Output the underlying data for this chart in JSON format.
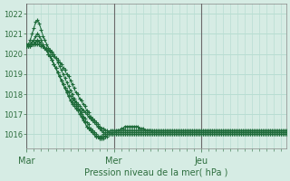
{
  "background_color": "#d6ece4",
  "grid_color": "#b8ddd2",
  "line_color": "#1e6b3a",
  "vline_color": "#8a8a8a",
  "tick_color": "#2d6e3e",
  "text_color": "#2d6e3e",
  "xlabel": "Pression niveau de la mer( hPa )",
  "ylim": [
    1015.3,
    1022.5
  ],
  "yticks": [
    1016,
    1017,
    1018,
    1019,
    1020,
    1021,
    1022
  ],
  "day_labels": [
    "Mar",
    "Mer",
    "Jeu"
  ],
  "day_positions": [
    0,
    48,
    96
  ],
  "total_points": 144,
  "series": [
    [
      1020.5,
      1020.5,
      1020.5,
      1020.5,
      1020.5,
      1020.5,
      1020.5,
      1020.5,
      1020.4,
      1020.4,
      1020.3,
      1020.3,
      1020.2,
      1020.1,
      1020.0,
      1019.9,
      1019.8,
      1019.7,
      1019.6,
      1019.5,
      1019.3,
      1019.2,
      1019.0,
      1018.9,
      1018.7,
      1018.5,
      1018.3,
      1018.1,
      1018.0,
      1017.8,
      1017.7,
      1017.5,
      1017.4,
      1017.2,
      1017.1,
      1016.9,
      1016.8,
      1016.7,
      1016.6,
      1016.5,
      1016.4,
      1016.3,
      1016.3,
      1016.2,
      1016.2,
      1016.1,
      1016.1,
      1016.0,
      1016.1,
      1016.1,
      1016.2,
      1016.2,
      1016.3,
      1016.3,
      1016.4,
      1016.4,
      1016.4,
      1016.4,
      1016.4,
      1016.4,
      1016.4,
      1016.4,
      1016.3,
      1016.3,
      1016.3,
      1016.2,
      1016.2,
      1016.2,
      1016.2,
      1016.1,
      1016.1,
      1016.1,
      1016.1,
      1016.1,
      1016.1,
      1016.1,
      1016.1,
      1016.1,
      1016.1,
      1016.1,
      1016.1,
      1016.1,
      1016.1,
      1016.1,
      1016.1,
      1016.1,
      1016.1,
      1016.1,
      1016.1,
      1016.1,
      1016.1,
      1016.1,
      1016.1,
      1016.1,
      1016.1,
      1016.1,
      1016.1,
      1016.1,
      1016.1,
      1016.1,
      1016.1,
      1016.1,
      1016.1,
      1016.1,
      1016.1,
      1016.1,
      1016.1,
      1016.1,
      1016.1,
      1016.1,
      1016.1,
      1016.1,
      1016.1,
      1016.1,
      1016.1,
      1016.1,
      1016.1,
      1016.1,
      1016.1,
      1016.1,
      1016.1,
      1016.1,
      1016.1,
      1016.1,
      1016.1,
      1016.1,
      1016.1,
      1016.1,
      1016.1,
      1016.1,
      1016.1,
      1016.1,
      1016.1,
      1016.1,
      1016.1,
      1016.1,
      1016.1,
      1016.1,
      1016.1,
      1016.1,
      1016.1,
      1016.1,
      1016.1,
      1016.1
    ],
    [
      1020.4,
      1020.5,
      1020.7,
      1021.0,
      1021.3,
      1021.6,
      1021.7,
      1021.5,
      1021.2,
      1020.9,
      1020.7,
      1020.5,
      1020.3,
      1020.2,
      1020.1,
      1020.0,
      1019.8,
      1019.6,
      1019.4,
      1019.2,
      1019.0,
      1018.8,
      1018.6,
      1018.4,
      1018.2,
      1018.0,
      1017.8,
      1017.6,
      1017.4,
      1017.2,
      1017.0,
      1016.8,
      1016.6,
      1016.4,
      1016.3,
      1016.2,
      1016.1,
      1016.0,
      1015.9,
      1015.9,
      1015.9,
      1015.9,
      1016.0,
      1016.0,
      1016.1,
      1016.1,
      1016.2,
      1016.2,
      1016.2,
      1016.2,
      1016.2,
      1016.2,
      1016.2,
      1016.2,
      1016.2,
      1016.2,
      1016.2,
      1016.2,
      1016.2,
      1016.2,
      1016.2,
      1016.2,
      1016.2,
      1016.2,
      1016.2,
      1016.2,
      1016.2,
      1016.2,
      1016.2,
      1016.2,
      1016.2,
      1016.2,
      1016.2,
      1016.2,
      1016.2,
      1016.2,
      1016.2,
      1016.2,
      1016.2,
      1016.2,
      1016.2,
      1016.2,
      1016.2,
      1016.2,
      1016.2,
      1016.2,
      1016.2,
      1016.2,
      1016.2,
      1016.2,
      1016.2,
      1016.2,
      1016.2,
      1016.2,
      1016.2,
      1016.2,
      1016.2,
      1016.2,
      1016.2,
      1016.2,
      1016.2,
      1016.2,
      1016.2,
      1016.2,
      1016.2,
      1016.2,
      1016.2,
      1016.2,
      1016.2,
      1016.2,
      1016.2,
      1016.2,
      1016.2,
      1016.2,
      1016.2,
      1016.2,
      1016.2,
      1016.2,
      1016.2,
      1016.2,
      1016.2,
      1016.2,
      1016.2,
      1016.2,
      1016.2,
      1016.2,
      1016.2,
      1016.2,
      1016.2,
      1016.2,
      1016.2,
      1016.2,
      1016.2,
      1016.2,
      1016.2,
      1016.2,
      1016.2,
      1016.2,
      1016.2,
      1016.2,
      1016.2,
      1016.2,
      1016.2,
      1016.2
    ],
    [
      1020.4,
      1020.4,
      1020.5,
      1020.6,
      1020.7,
      1020.9,
      1021.0,
      1020.9,
      1020.7,
      1020.5,
      1020.3,
      1020.2,
      1020.0,
      1019.9,
      1019.7,
      1019.5,
      1019.3,
      1019.1,
      1018.9,
      1018.7,
      1018.5,
      1018.3,
      1018.1,
      1017.9,
      1017.7,
      1017.5,
      1017.4,
      1017.3,
      1017.2,
      1017.0,
      1016.9,
      1016.7,
      1016.6,
      1016.4,
      1016.3,
      1016.2,
      1016.1,
      1016.0,
      1015.9,
      1015.9,
      1015.8,
      1015.8,
      1015.9,
      1015.9,
      1016.0,
      1016.0,
      1016.1,
      1016.1,
      1016.1,
      1016.1,
      1016.1,
      1016.1,
      1016.1,
      1016.1,
      1016.1,
      1016.1,
      1016.1,
      1016.1,
      1016.1,
      1016.1,
      1016.1,
      1016.1,
      1016.1,
      1016.1,
      1016.1,
      1016.1,
      1016.1,
      1016.1,
      1016.1,
      1016.1,
      1016.1,
      1016.1,
      1016.1,
      1016.1,
      1016.1,
      1016.1,
      1016.1,
      1016.1,
      1016.1,
      1016.1,
      1016.1,
      1016.1,
      1016.1,
      1016.1,
      1016.1,
      1016.1,
      1016.1,
      1016.1,
      1016.1,
      1016.1,
      1016.1,
      1016.1,
      1016.1,
      1016.1,
      1016.1,
      1016.1,
      1016.1,
      1016.1,
      1016.1,
      1016.1,
      1016.1,
      1016.1,
      1016.1,
      1016.1,
      1016.1,
      1016.1,
      1016.1,
      1016.1,
      1016.1,
      1016.1,
      1016.1,
      1016.1,
      1016.1,
      1016.1,
      1016.1,
      1016.1,
      1016.1,
      1016.1,
      1016.1,
      1016.1,
      1016.1,
      1016.1,
      1016.1,
      1016.1,
      1016.1,
      1016.1,
      1016.1,
      1016.1,
      1016.1,
      1016.1,
      1016.1,
      1016.1,
      1016.1,
      1016.1,
      1016.1,
      1016.1,
      1016.1,
      1016.1,
      1016.1,
      1016.1,
      1016.1,
      1016.1,
      1016.1,
      1016.1
    ],
    [
      1020.4,
      1020.4,
      1020.4,
      1020.5,
      1020.5,
      1020.6,
      1020.7,
      1020.6,
      1020.5,
      1020.4,
      1020.3,
      1020.2,
      1020.0,
      1019.9,
      1019.7,
      1019.5,
      1019.3,
      1019.1,
      1018.9,
      1018.7,
      1018.5,
      1018.3,
      1018.1,
      1017.9,
      1017.7,
      1017.6,
      1017.5,
      1017.4,
      1017.3,
      1017.2,
      1017.1,
      1016.9,
      1016.8,
      1016.6,
      1016.5,
      1016.3,
      1016.2,
      1016.1,
      1016.0,
      1015.9,
      1015.8,
      1015.8,
      1015.8,
      1015.9,
      1015.9,
      1016.0,
      1016.0,
      1016.0,
      1016.0,
      1016.0,
      1016.0,
      1016.0,
      1016.0,
      1016.0,
      1016.0,
      1016.0,
      1016.0,
      1016.0,
      1016.0,
      1016.0,
      1016.0,
      1016.0,
      1016.0,
      1016.0,
      1016.0,
      1016.0,
      1016.0,
      1016.0,
      1016.0,
      1016.0,
      1016.0,
      1016.0,
      1016.0,
      1016.0,
      1016.0,
      1016.0,
      1016.0,
      1016.0,
      1016.0,
      1016.0,
      1016.0,
      1016.0,
      1016.0,
      1016.0,
      1016.0,
      1016.0,
      1016.0,
      1016.0,
      1016.0,
      1016.0,
      1016.0,
      1016.0,
      1016.0,
      1016.0,
      1016.0,
      1016.0,
      1016.0,
      1016.0,
      1016.0,
      1016.0,
      1016.0,
      1016.0,
      1016.0,
      1016.0,
      1016.0,
      1016.0,
      1016.0,
      1016.0,
      1016.0,
      1016.0,
      1016.0,
      1016.0,
      1016.0,
      1016.0,
      1016.0,
      1016.0,
      1016.0,
      1016.0,
      1016.0,
      1016.0,
      1016.0,
      1016.0,
      1016.0,
      1016.0,
      1016.0,
      1016.0,
      1016.0,
      1016.0,
      1016.0,
      1016.0,
      1016.0,
      1016.0,
      1016.0,
      1016.0,
      1016.0,
      1016.0,
      1016.0,
      1016.0,
      1016.0,
      1016.0,
      1016.0,
      1016.0,
      1016.0,
      1016.0
    ],
    [
      1020.4,
      1020.4,
      1020.4,
      1020.5,
      1020.5,
      1020.6,
      1020.6,
      1020.6,
      1020.5,
      1020.4,
      1020.3,
      1020.2,
      1020.0,
      1019.9,
      1019.7,
      1019.5,
      1019.3,
      1019.1,
      1018.9,
      1018.7,
      1018.5,
      1018.3,
      1018.2,
      1018.1,
      1017.9,
      1017.8,
      1017.7,
      1017.6,
      1017.5,
      1017.4,
      1017.3,
      1017.2,
      1017.1,
      1017.0,
      1016.9,
      1016.8,
      1016.7,
      1016.6,
      1016.5,
      1016.4,
      1016.3,
      1016.2,
      1016.1,
      1016.0,
      1016.0,
      1016.0,
      1016.0,
      1016.0,
      1016.0,
      1016.0,
      1016.0,
      1016.0,
      1016.0,
      1016.0,
      1016.0,
      1016.0,
      1016.0,
      1016.0,
      1016.0,
      1016.0,
      1016.0,
      1016.0,
      1016.0,
      1016.0,
      1016.0,
      1016.0,
      1016.0,
      1016.0,
      1016.0,
      1016.0,
      1016.0,
      1016.0,
      1016.0,
      1016.0,
      1016.0,
      1016.0,
      1016.0,
      1016.0,
      1016.0,
      1016.0,
      1016.0,
      1016.0,
      1016.0,
      1016.0,
      1016.0,
      1016.0,
      1016.0,
      1016.0,
      1016.0,
      1016.0,
      1016.0,
      1016.0,
      1016.0,
      1016.0,
      1016.0,
      1016.0,
      1016.0,
      1016.0,
      1016.0,
      1016.0,
      1016.0,
      1016.0,
      1016.0,
      1016.0,
      1016.0,
      1016.0,
      1016.0,
      1016.0,
      1016.0,
      1016.0,
      1016.0,
      1016.0,
      1016.0,
      1016.0,
      1016.0,
      1016.0,
      1016.0,
      1016.0,
      1016.0,
      1016.0,
      1016.0,
      1016.0,
      1016.0,
      1016.0,
      1016.0,
      1016.0,
      1016.0,
      1016.0,
      1016.0,
      1016.0,
      1016.0,
      1016.0,
      1016.0,
      1016.0,
      1016.0,
      1016.0,
      1016.0,
      1016.0,
      1016.0,
      1016.0,
      1016.0,
      1016.0,
      1016.0,
      1016.0
    ]
  ]
}
